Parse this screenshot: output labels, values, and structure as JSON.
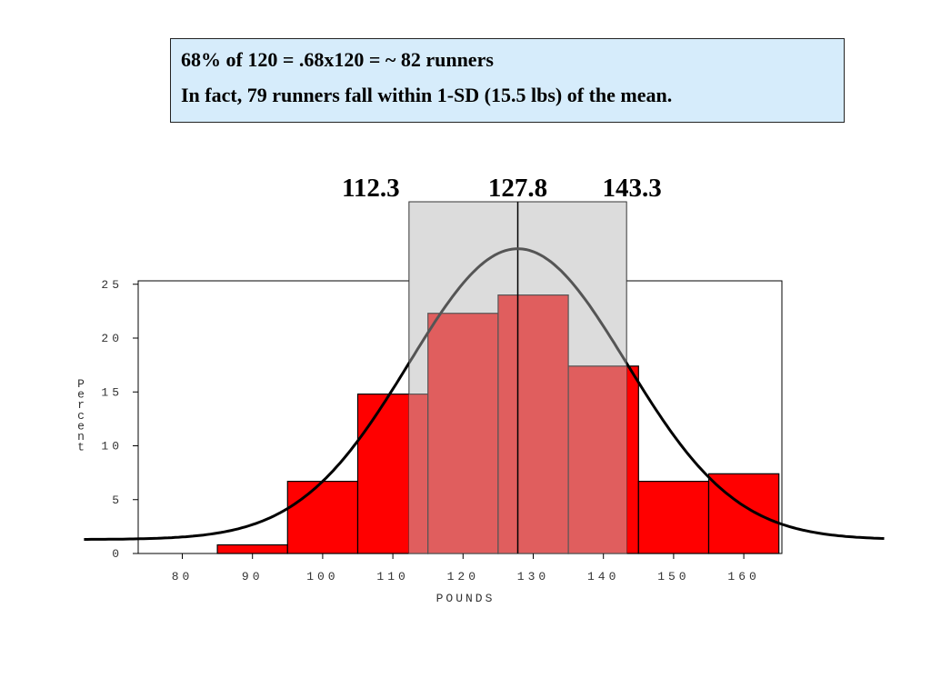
{
  "callout": {
    "line1": "68%  of  120 = .68x120 = ~ 82 runners",
    "line2": "In fact, 79 runners fall within 1-SD (15.5 lbs) of the mean."
  },
  "chart_data": {
    "type": "bar",
    "title": "",
    "xlabel": "POUNDS",
    "ylabel": "Percent",
    "xlim": [
      75,
      165
    ],
    "ylim": [
      0,
      26
    ],
    "x_ticks": [
      80,
      90,
      100,
      110,
      120,
      130,
      140,
      150,
      160
    ],
    "y_ticks": [
      0,
      5,
      10,
      15,
      20,
      25
    ],
    "grid": false,
    "bins": [
      {
        "start": 85,
        "end": 95,
        "value": 0.8
      },
      {
        "start": 95,
        "end": 105,
        "value": 6.7
      },
      {
        "start": 105,
        "end": 115,
        "value": 14.8
      },
      {
        "start": 115,
        "end": 125,
        "value": 22.3
      },
      {
        "start": 125,
        "end": 135,
        "value": 24.0
      },
      {
        "start": 135,
        "end": 145,
        "value": 17.4
      },
      {
        "start": 145,
        "end": 155,
        "value": 6.7
      },
      {
        "start": 155,
        "end": 165,
        "value": 7.4
      }
    ],
    "normal_curve": {
      "mean": 127.8,
      "sd": 15.5,
      "peak": 27.0
    },
    "sd_band": {
      "lower": 112.3,
      "mean": 127.8,
      "upper": 143.3,
      "labels": [
        "112.3",
        "127.8",
        "143.3"
      ]
    },
    "colors": {
      "bar": "#ff0000",
      "bar_in_band": "#e05e5e",
      "band": "#dcdcdc",
      "curve_outer": "#000000",
      "curve_inner": "#555555"
    }
  }
}
